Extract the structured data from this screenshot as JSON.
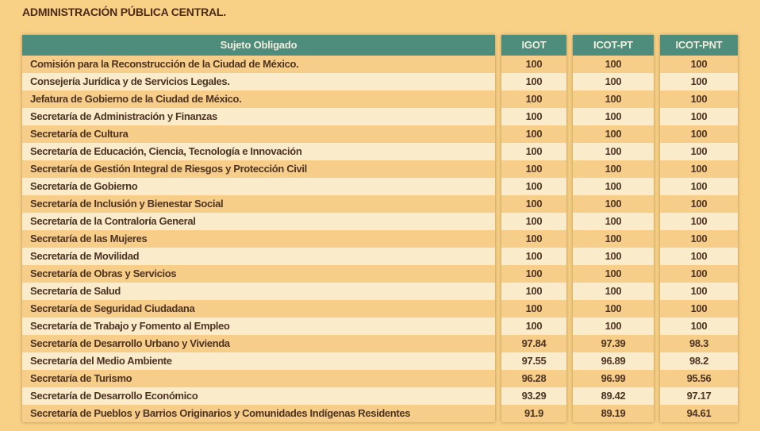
{
  "page": {
    "title": "ADMINISTRACIÓN PÚBLICA CENTRAL.",
    "background_color": "#F8D187",
    "header_color": "#4E8D7B",
    "row_dark_color": "#F7CE89",
    "row_light_color": "#FAEBCB",
    "text_color": "#4D3423",
    "title_color": "#4B2A1A"
  },
  "table": {
    "columns": [
      "Sujeto Obligado",
      "IGOT",
      "ICOT-PT",
      "ICOT-PNT"
    ],
    "rows": [
      [
        "Comisión para la Reconstrucción de la Ciudad de México.",
        "100",
        "100",
        "100"
      ],
      [
        "Consejería Jurídica y de Servicios Legales.",
        "100",
        "100",
        "100"
      ],
      [
        "Jefatura de Gobierno de la Ciudad de México.",
        "100",
        "100",
        "100"
      ],
      [
        "Secretaría de Administración y Finanzas",
        "100",
        "100",
        "100"
      ],
      [
        "Secretaría de Cultura",
        "100",
        "100",
        "100"
      ],
      [
        "Secretaría de Educación, Ciencia, Tecnología e Innovación",
        "100",
        "100",
        "100"
      ],
      [
        "Secretaría de Gestión Integral de Riesgos y Protección Civil",
        "100",
        "100",
        "100"
      ],
      [
        "Secretaría de Gobierno",
        "100",
        "100",
        "100"
      ],
      [
        "Secretaría de Inclusión y Bienestar Social",
        "100",
        "100",
        "100"
      ],
      [
        "Secretaría de la Contraloría General",
        "100",
        "100",
        "100"
      ],
      [
        "Secretaría de las Mujeres",
        "100",
        "100",
        "100"
      ],
      [
        "Secretaría de Movilidad",
        "100",
        "100",
        "100"
      ],
      [
        "Secretaría de Obras y Servicios",
        "100",
        "100",
        "100"
      ],
      [
        "Secretaría de Salud",
        "100",
        "100",
        "100"
      ],
      [
        "Secretaría de Seguridad Ciudadana",
        "100",
        "100",
        "100"
      ],
      [
        "Secretaría de Trabajo y Fomento al Empleo",
        "100",
        "100",
        "100"
      ],
      [
        "Secretaría de Desarrollo Urbano y Vivienda",
        "97.84",
        "97.39",
        "98.3"
      ],
      [
        "Secretaría del Medio Ambiente",
        "97.55",
        "96.89",
        "98.2"
      ],
      [
        "Secretaría de Turismo",
        "96.28",
        "96.99",
        "95.56"
      ],
      [
        "Secretaría de Desarrollo Económico",
        "93.29",
        "89.42",
        "97.17"
      ],
      [
        "Secretaría de Pueblos y Barrios Originarios y Comunidades Indígenas Residentes",
        "91.9",
        "89.19",
        "94.61"
      ]
    ]
  }
}
